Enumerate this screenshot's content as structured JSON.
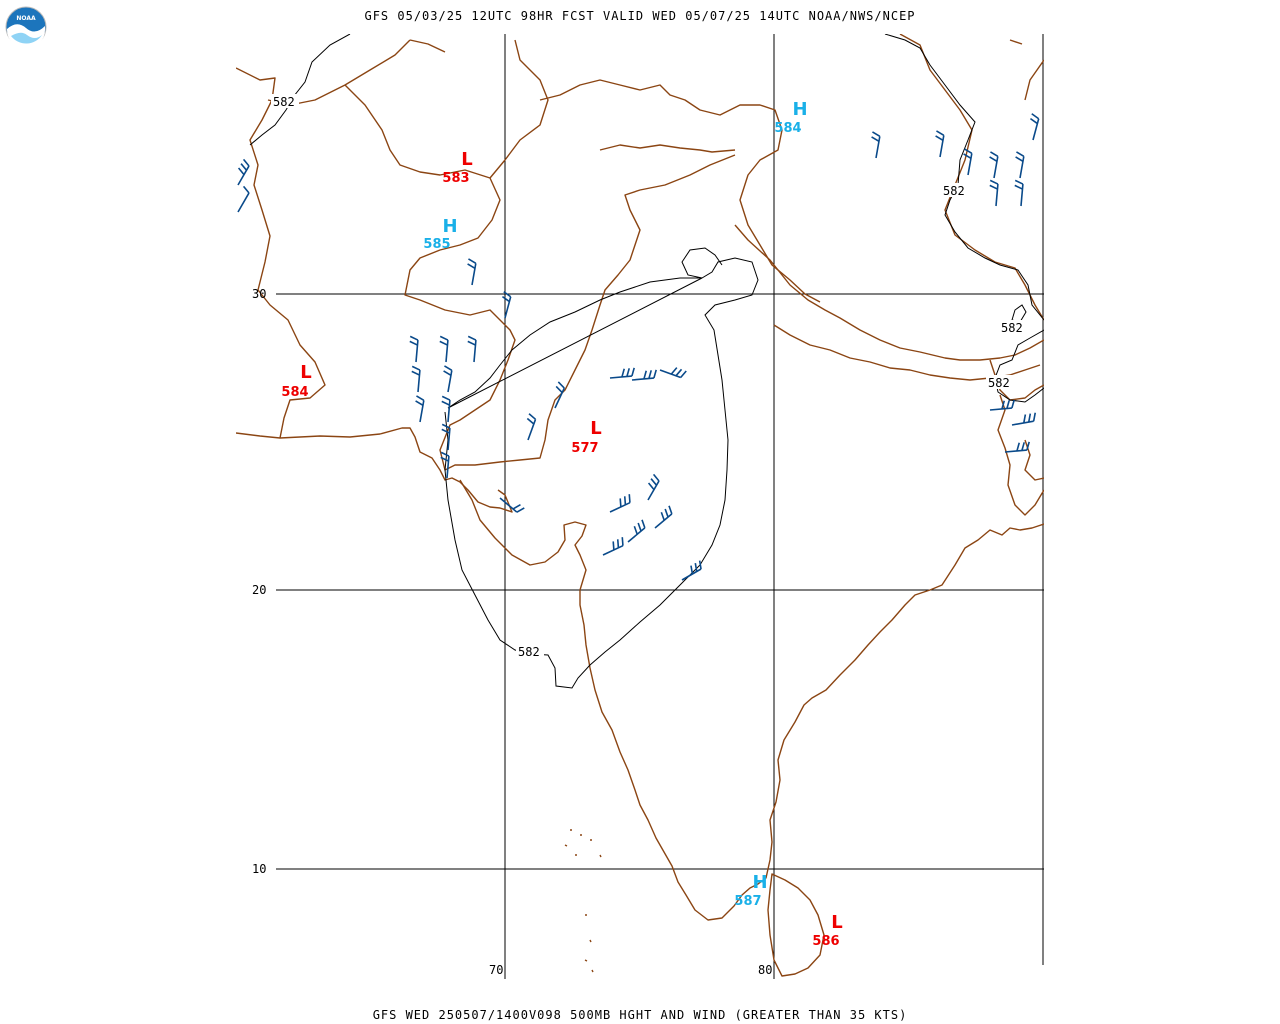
{
  "header": {
    "top_title": "GFS 05/03/25 12UTC 98HR FCST VALID WED 05/07/25 14UTC NOAA/NWS/NCEP",
    "bottom_title": "GFS WED 250507/1400V098 500MB HGHT AND WIND (GREATER THAN 35 KTS)"
  },
  "logo": {
    "name": "noaa-logo",
    "text": "NOAA"
  },
  "grid": {
    "lat_labels": [
      "30",
      "20",
      "10"
    ],
    "lon_labels": [
      "70",
      "80"
    ]
  },
  "colors": {
    "low": "#ee0000",
    "high": "#1ab0e8",
    "coast": "#8b4513",
    "wind_barb": "#0a4a8a",
    "contour": "#000000",
    "grid": "#000000"
  },
  "centers": [
    {
      "type": "L",
      "value": "583"
    },
    {
      "type": "H",
      "value": "585"
    },
    {
      "type": "H",
      "value": "584"
    },
    {
      "type": "L",
      "value": "584"
    },
    {
      "type": "L",
      "value": "577"
    },
    {
      "type": "H",
      "value": "587"
    },
    {
      "type": "L",
      "value": "586"
    }
  ],
  "contour_labels": [
    "582",
    "582",
    "582",
    "582",
    "582"
  ]
}
